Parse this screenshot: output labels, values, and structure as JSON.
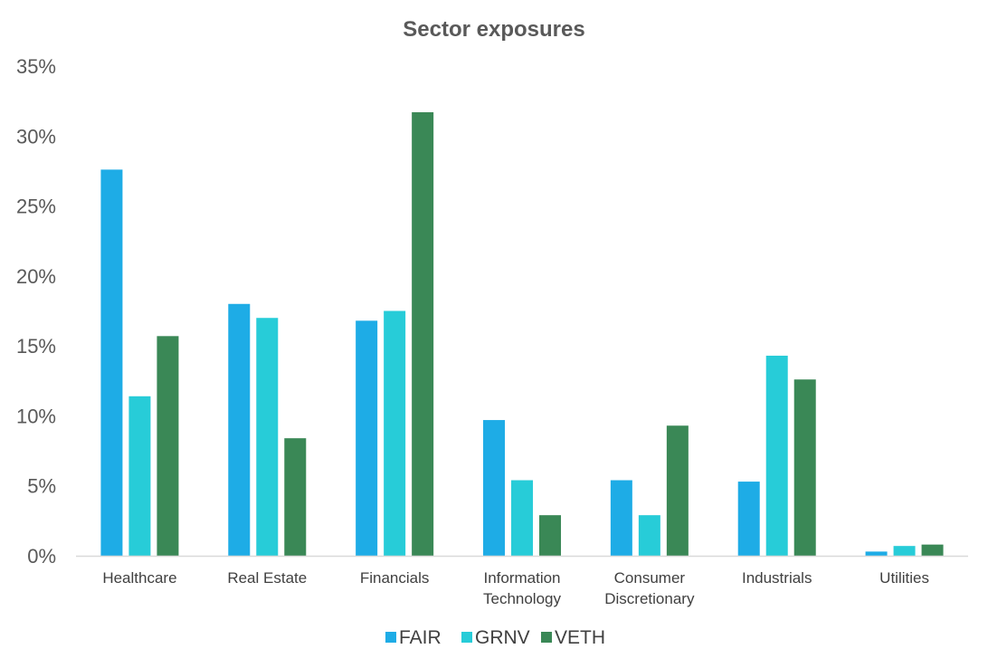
{
  "chart_data": {
    "type": "bar",
    "title": "Sector exposures",
    "xlabel": "",
    "ylabel": "",
    "ylim": [
      0,
      0.35
    ],
    "yticks": [
      "0%",
      "5%",
      "10%",
      "15%",
      "20%",
      "25%",
      "30%",
      "35%"
    ],
    "categories": [
      [
        "Healthcare"
      ],
      [
        "Real Estate"
      ],
      [
        "Financials"
      ],
      [
        "Information",
        "Technology"
      ],
      [
        "Consumer",
        "Discretionary"
      ],
      [
        "Industrials"
      ],
      [
        "Utilities"
      ]
    ],
    "series": [
      {
        "name": "FAIR",
        "color": "#1EACE6",
        "values": [
          0.276,
          0.18,
          0.168,
          0.097,
          0.054,
          0.053,
          0.003
        ]
      },
      {
        "name": "GRNV",
        "color": "#27CCD8",
        "values": [
          0.114,
          0.17,
          0.175,
          0.054,
          0.029,
          0.143,
          0.007
        ]
      },
      {
        "name": "VETH",
        "color": "#3A8856",
        "values": [
          0.157,
          0.084,
          0.317,
          0.029,
          0.093,
          0.126,
          0.008
        ]
      }
    ],
    "grid": false,
    "legend": "bottom"
  }
}
